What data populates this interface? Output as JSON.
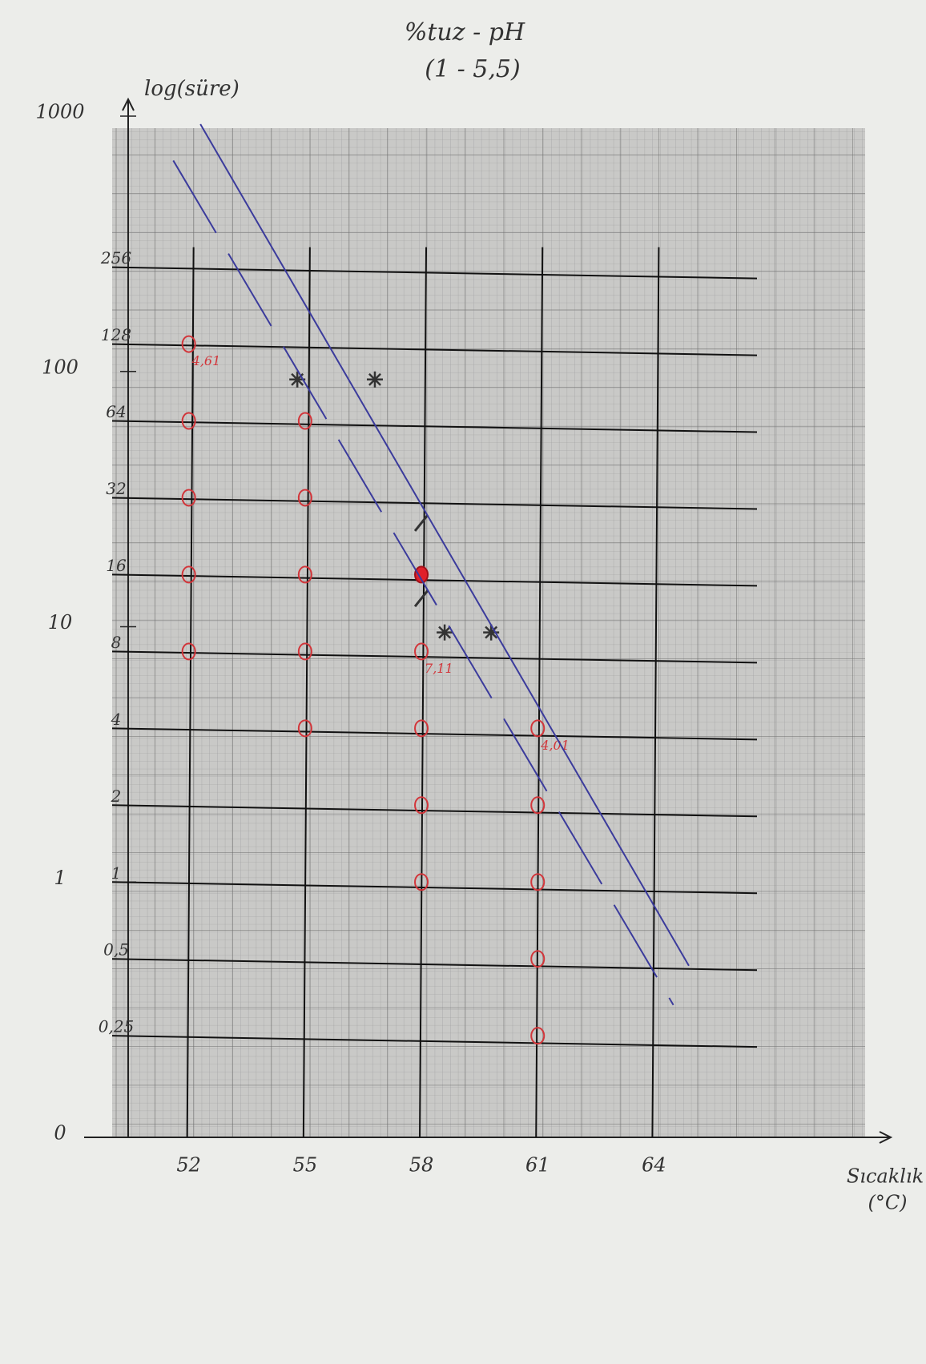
{
  "chart_data": {
    "type": "scatter",
    "title": "%tuz - pH",
    "subtitle": "(1 - 5,5)",
    "ylabel": "log(süre)",
    "xlabel": "Sıcaklık",
    "xunit": "(°C)",
    "log_y": true,
    "xlim": [
      49.3,
      68
    ],
    "xticks": [
      52,
      55,
      58,
      61,
      64
    ],
    "ylim": [
      0.1,
      1000
    ],
    "yticks": [
      {
        "value": 0.1,
        "label": "0"
      },
      1,
      10,
      100,
      1000
    ],
    "yticks_minor": [
      256,
      128,
      64,
      32,
      16,
      8,
      4,
      2,
      1,
      {
        "value": 0.5,
        "label": "0,5"
      },
      {
        "value": 0.25,
        "label": "0,25"
      }
    ],
    "series": [
      {
        "marker": "circle",
        "color": "#d2353a",
        "x": [
          52,
          52,
          52,
          52,
          52,
          55,
          55,
          55,
          55,
          55,
          58,
          58,
          58,
          58,
          61,
          61,
          61,
          61,
          61
        ],
        "values": [
          128,
          64,
          32,
          16,
          8,
          64,
          32,
          16,
          8,
          4,
          8,
          4,
          2,
          1,
          4,
          2,
          1,
          0.5,
          0.25
        ],
        "point_labels": [
          "4,61",
          null,
          null,
          null,
          null,
          null,
          null,
          null,
          null,
          null,
          "7,11",
          null,
          null,
          null,
          "4,01",
          null,
          null,
          null,
          null
        ]
      },
      {
        "marker": "dot",
        "color": "#e0202a",
        "x": [
          58
        ],
        "values": [
          16
        ]
      },
      {
        "marker": "star",
        "color": "#333333",
        "x": [
          54.8,
          56.8,
          58.6,
          59.8
        ],
        "values": [
          93,
          93,
          9.5,
          9.5
        ]
      },
      {
        "marker": "tick",
        "color": "#333333",
        "x": [
          58,
          58
        ],
        "values": [
          25.5,
          12.9
        ]
      },
      {
        "marker": "line",
        "color": "#3b3b9c",
        "x": [
          52.3,
          64.9
        ],
        "values": [
          930,
          0.47
        ]
      },
      {
        "marker": "line",
        "dashed": true,
        "color": "#3b3b9c",
        "x": [
          51.6,
          64.5
        ],
        "values": [
          670,
          0.33
        ]
      }
    ]
  }
}
